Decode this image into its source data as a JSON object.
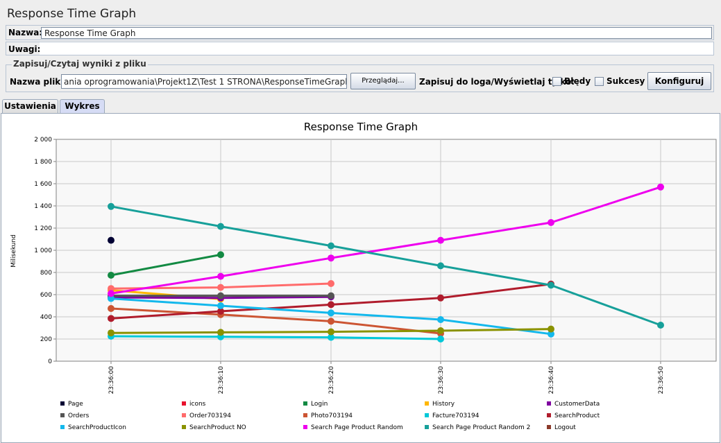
{
  "window": {
    "title": "Response Time Graph"
  },
  "name_row": {
    "label": "Nazwa:",
    "value": "Response Time Graph"
  },
  "notes_row": {
    "label": "Uwagi:",
    "value": ""
  },
  "file_section": {
    "legend": "Zapisuj/Czytaj wyniki z pliku",
    "file_label": "Nazwa pliku",
    "file_value": "ania oprogramowania\\Projekt1Z\\Test 1 STRONA\\ResponseTimeGraph.csv",
    "browse_label": "Przeglądaj...",
    "log_label": "Zapisuj do loga/Wyświetlaj tylko:",
    "errors_label": "Błędy",
    "errors_checked": false,
    "success_label": "Sukcesy",
    "success_checked": false,
    "configure_label": "Konfiguruj"
  },
  "tabs": [
    {
      "label": "Ustawienia",
      "active": false
    },
    {
      "label": "Wykres",
      "active": true
    }
  ],
  "chart_data": {
    "type": "line",
    "title": "Response Time Graph",
    "xlabel": "",
    "ylabel": "Milisekund",
    "ylim": [
      0,
      2000
    ],
    "y_ticks": [
      "0",
      "200",
      "400",
      "600",
      "800",
      "1 000",
      "1 200",
      "1 400",
      "1 600",
      "1 800",
      "2 000"
    ],
    "x_ticks": [
      "23:36:00",
      "23:36:10",
      "23:36:20",
      "23:36:30",
      "23:36:40",
      "23:36:50"
    ],
    "grid": true,
    "legend_position": "bottom",
    "series": [
      {
        "name": "Page",
        "color": "#000033",
        "x": [
          "23:36:00"
        ],
        "values": [
          1090
        ]
      },
      {
        "name": "icons",
        "color": "#e8112d",
        "x": [],
        "values": []
      },
      {
        "name": "Login",
        "color": "#138a43",
        "x": [
          "23:36:00",
          "23:36:10"
        ],
        "values": [
          775,
          960
        ]
      },
      {
        "name": "History",
        "color": "#ffb700",
        "x": [
          "23:36:00",
          "23:36:10"
        ],
        "values": [
          640,
          560
        ]
      },
      {
        "name": "CustomerData",
        "color": "#7f00a0",
        "x": [
          "23:36:00",
          "23:36:10",
          "23:36:20"
        ],
        "values": [
          575,
          570,
          580
        ]
      },
      {
        "name": "Orders",
        "color": "#555555",
        "x": [
          "23:36:00",
          "23:36:10",
          "23:36:20"
        ],
        "values": [
          590,
          590,
          590
        ]
      },
      {
        "name": "Order703194",
        "color": "#ff6b6b",
        "x": [
          "23:36:00",
          "23:36:10",
          "23:36:20"
        ],
        "values": [
          655,
          665,
          700
        ]
      },
      {
        "name": "Photo703194",
        "color": "#cc5533",
        "x": [
          "23:36:00",
          "23:36:10",
          "23:36:20",
          "23:36:30"
        ],
        "values": [
          475,
          420,
          360,
          250
        ]
      },
      {
        "name": "Facture703194",
        "color": "#00c8d8",
        "x": [
          "23:36:00",
          "23:36:10",
          "23:36:20",
          "23:36:30"
        ],
        "values": [
          225,
          220,
          215,
          200
        ]
      },
      {
        "name": "SearchProduct",
        "color": "#b01c2c",
        "x": [
          "23:36:00",
          "23:36:10",
          "23:36:20",
          "23:36:30",
          "23:36:40"
        ],
        "values": [
          385,
          450,
          510,
          570,
          695
        ]
      },
      {
        "name": "SearchProductIcon",
        "color": "#14b8ec",
        "x": [
          "23:36:00",
          "23:36:10",
          "23:36:20",
          "23:36:30",
          "23:36:40"
        ],
        "values": [
          565,
          500,
          435,
          375,
          245
        ]
      },
      {
        "name": "SearchProduct NO",
        "color": "#8a9200",
        "x": [
          "23:36:00",
          "23:36:10",
          "23:36:20",
          "23:36:30",
          "23:36:40"
        ],
        "values": [
          255,
          260,
          265,
          275,
          290
        ]
      },
      {
        "name": "Search Page Product Random",
        "color": "#ee00ee",
        "x": [
          "23:36:00",
          "23:36:10",
          "23:36:20",
          "23:36:30",
          "23:36:40",
          "23:36:50"
        ],
        "values": [
          610,
          765,
          930,
          1090,
          1250,
          1570
        ]
      },
      {
        "name": "Search Page Product Random 2",
        "color": "#17a09a",
        "x": [
          "23:36:00",
          "23:36:10",
          "23:36:20",
          "23:36:30",
          "23:36:40",
          "23:36:50"
        ],
        "values": [
          1395,
          1215,
          1040,
          860,
          685,
          325
        ]
      },
      {
        "name": "Logout",
        "color": "#8b3a2a",
        "x": [],
        "values": []
      }
    ]
  }
}
